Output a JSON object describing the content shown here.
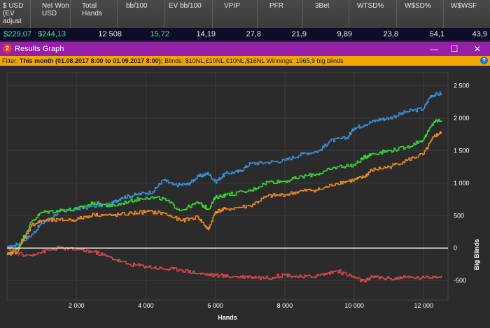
{
  "stats": {
    "headers": [
      "$ USD (EV adjust",
      "Net Won USD",
      "Total Hands",
      "bb/100",
      "EV bb/100",
      "VPIP",
      "PFR",
      "3Bet",
      "WTSD%",
      "W$SD%",
      "W$WSF"
    ],
    "values": [
      "$229,07",
      "$244,13",
      "12 508",
      "15,72",
      "14,19",
      "27,8",
      "21,9",
      "9,89",
      "23,8",
      "54,1",
      "43,9"
    ]
  },
  "window": {
    "icon_label": "2",
    "title": "Results Graph",
    "minimize_glyph": "—",
    "maximize_glyph": "☐",
    "close_glyph": "✕"
  },
  "filter": {
    "prefix": "Filter:",
    "period": "This month (01.08.2017 8:00 to 01.09.2017 8:00);",
    "blinds": "Blinds: $10NL,£10NL,€10NL,$16NL",
    "winnings": "Winnings: 1965,9 big blinds",
    "help_glyph": "?"
  },
  "colors": {
    "blue": "#3a8fd6",
    "green": "#39d83a",
    "orange": "#f08c28",
    "red": "#e04848",
    "zero_line": "#ffffff",
    "grid": "#3d3d3d"
  },
  "chart_data": {
    "type": "line",
    "xlabel": "Hands",
    "ylabel": "Big Blinds",
    "xlim": [
      0,
      12700
    ],
    "ylim": [
      -800,
      2700
    ],
    "x_ticks": [
      2000,
      4000,
      6000,
      8000,
      10000,
      12000
    ],
    "x_tick_labels": [
      "2 000",
      "4 000",
      "6 000",
      "8 000",
      "10 000",
      "12 000"
    ],
    "y_ticks": [
      -500,
      0,
      500,
      1000,
      1500,
      2000,
      2500
    ],
    "y_tick_labels": [
      "-500",
      "0",
      "500",
      "1 000",
      "1 500",
      "2 000",
      "2 500"
    ],
    "series": [
      {
        "color": "blue",
        "x": [
          0,
          300,
          700,
          1000,
          1500,
          2000,
          2500,
          3000,
          3300,
          3700,
          4200,
          4500,
          4800,
          5200,
          5500,
          5800,
          6000,
          6300,
          6700,
          7000,
          7500,
          8000,
          8500,
          9000,
          9300,
          9800,
          10000,
          10300,
          10700,
          11000,
          11500,
          12000,
          12200,
          12508
        ],
        "y": [
          0,
          60,
          200,
          380,
          560,
          600,
          650,
          680,
          780,
          820,
          870,
          1050,
          970,
          980,
          1100,
          1150,
          1020,
          1150,
          1180,
          1300,
          1320,
          1350,
          1450,
          1500,
          1650,
          1700,
          1850,
          1900,
          1980,
          2000,
          2100,
          2150,
          2350,
          2380
        ]
      },
      {
        "color": "green",
        "x": [
          0,
          300,
          700,
          1000,
          1500,
          2000,
          2500,
          3000,
          3500,
          4000,
          4500,
          5000,
          5500,
          5800,
          6000,
          6300,
          7000,
          7500,
          8000,
          8500,
          9000,
          9500,
          10000,
          10300,
          10500,
          11000,
          11500,
          12000,
          12300,
          12508
        ],
        "y": [
          -100,
          0,
          400,
          550,
          580,
          600,
          700,
          640,
          720,
          780,
          760,
          580,
          700,
          600,
          780,
          820,
          880,
          1020,
          1030,
          1100,
          1150,
          1250,
          1280,
          1400,
          1450,
          1500,
          1550,
          1680,
          1950,
          1970
        ]
      },
      {
        "color": "orange",
        "x": [
          0,
          300,
          700,
          1000,
          1500,
          2000,
          2500,
          3000,
          3500,
          4000,
          4500,
          5000,
          5500,
          5800,
          6000,
          6300,
          7000,
          7500,
          8000,
          8500,
          9000,
          9500,
          10000,
          10300,
          10500,
          11000,
          11500,
          12000,
          12300,
          12508
        ],
        "y": [
          -100,
          -50,
          350,
          420,
          430,
          440,
          520,
          500,
          530,
          560,
          540,
          420,
          480,
          280,
          560,
          600,
          650,
          800,
          820,
          880,
          900,
          1000,
          1050,
          1100,
          1200,
          1250,
          1350,
          1450,
          1720,
          1780
        ]
      },
      {
        "color": "red",
        "x": [
          0,
          500,
          1000,
          1500,
          2000,
          2500,
          3000,
          3500,
          4000,
          4500,
          5000,
          5500,
          6000,
          6500,
          7000,
          7500,
          8000,
          8500,
          9000,
          9500,
          10000,
          10300,
          10500,
          11000,
          11500,
          12000,
          12508
        ],
        "y": [
          0,
          -120,
          -60,
          0,
          -20,
          -60,
          -150,
          -250,
          -280,
          -320,
          -330,
          -390,
          -420,
          -440,
          -440,
          -460,
          -410,
          -450,
          -420,
          -350,
          -450,
          -520,
          -440,
          -470,
          -450,
          -460,
          -420
        ]
      }
    ]
  }
}
